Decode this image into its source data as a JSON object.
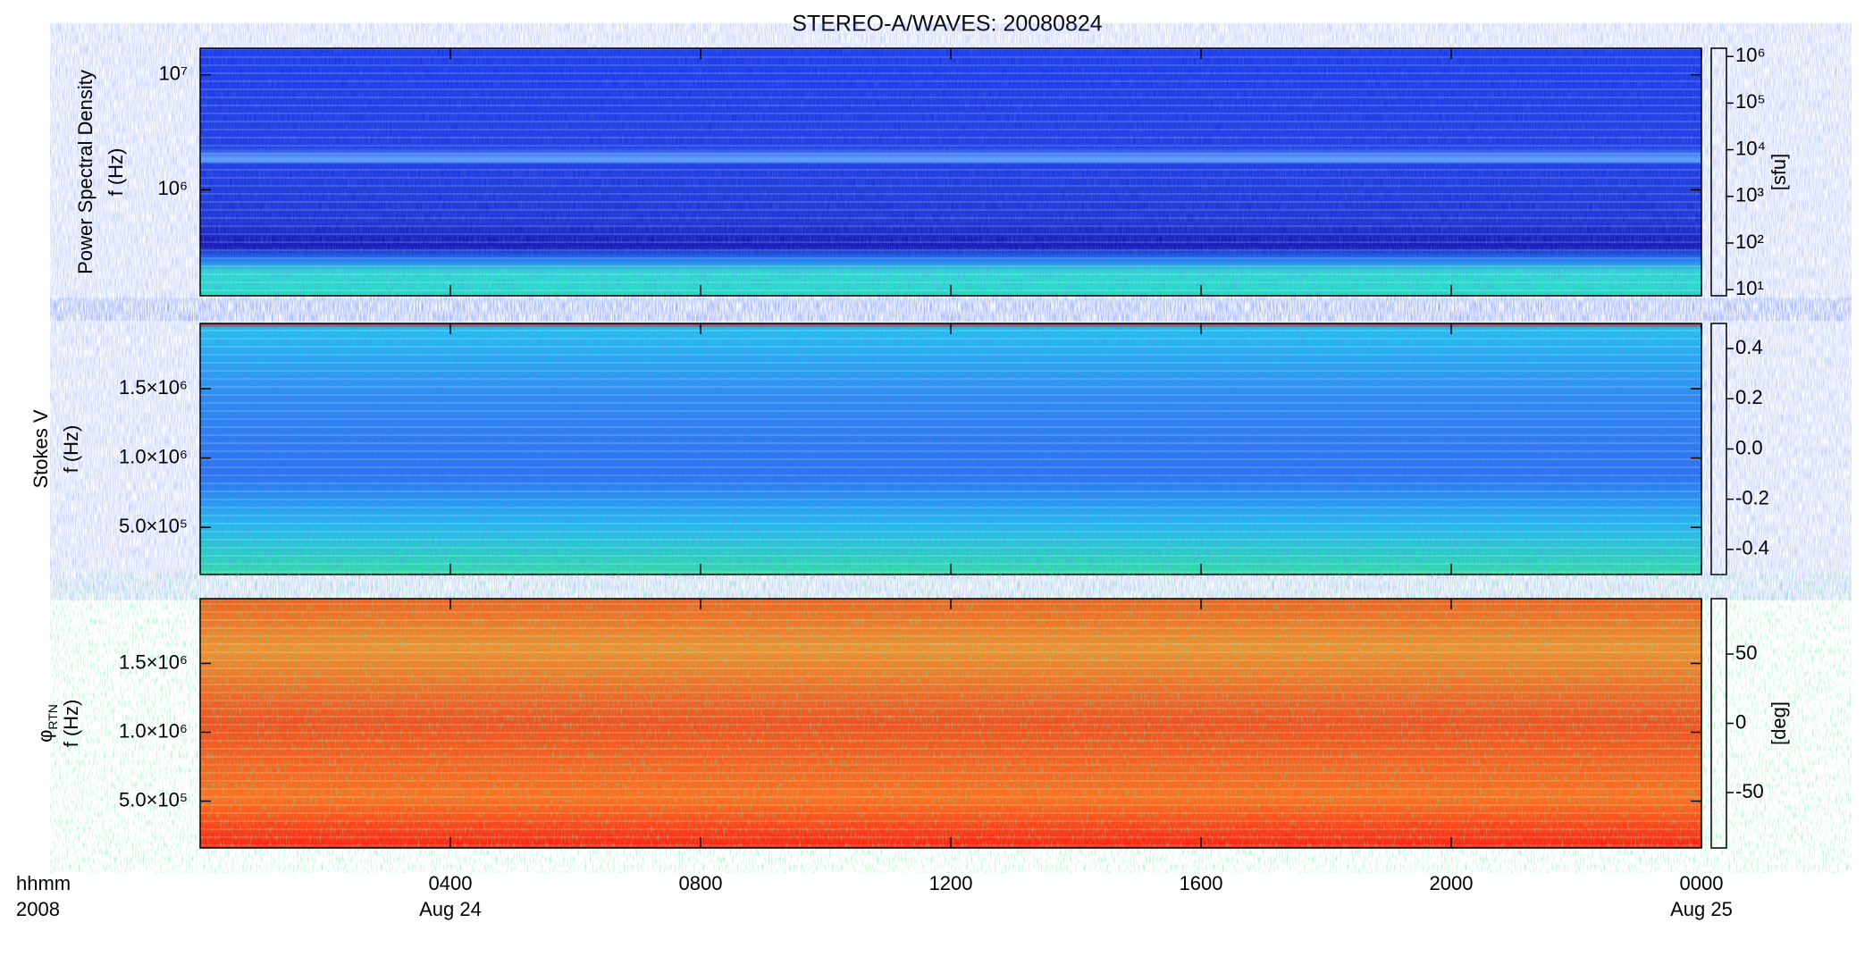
{
  "chart_data": [
    {
      "type": "spectrogram",
      "title": "STEREO-A/WAVES: 20080824",
      "ylabel": [
        "Power Spectral Density",
        "f (Hz)"
      ],
      "ylog": true,
      "ylim": [
        120000,
        17000000
      ],
      "yticks": [
        {
          "value": 1000000,
          "label": "10⁶"
        },
        {
          "value": 10000000,
          "label": "10⁷"
        }
      ],
      "colorbar": {
        "log": true,
        "clim": [
          7.4,
          1500000
        ],
        "label": "[sfu]",
        "ticks": [
          {
            "value": 10,
            "label": "10¹"
          },
          {
            "value": 100,
            "label": "10²"
          },
          {
            "value": 1000,
            "label": "10³"
          },
          {
            "value": 10000,
            "label": "10⁴"
          },
          {
            "value": 100000,
            "label": "10⁵"
          },
          {
            "value": 1000000,
            "label": "10⁶"
          }
        ]
      }
    },
    {
      "type": "spectrogram",
      "ylabel": [
        "Stokes V",
        "f (Hz)"
      ],
      "ylog": false,
      "ylim": [
        160000,
        1970000
      ],
      "yticks": [
        {
          "value": 500000,
          "label": "5.0×10⁵"
        },
        {
          "value": 1000000,
          "label": "1.0×10⁶"
        },
        {
          "value": 1500000,
          "label": "1.5×10⁶"
        }
      ],
      "colorbar": {
        "log": false,
        "clim": [
          -0.5,
          0.5
        ],
        "ticks": [
          -0.4,
          -0.2,
          {
            "value": 0,
            "label": "0.0"
          },
          0.2,
          0.4
        ]
      }
    },
    {
      "type": "spectrogram",
      "ylabel": [
        "f (Hz)"
      ],
      "ylabel_symbol": "φ",
      "ylabel_subscript": "RTN",
      "ylog": false,
      "ylim": [
        160000,
        1970000
      ],
      "yticks": [
        {
          "value": 500000,
          "label": "5.0×10⁵"
        },
        {
          "value": 1000000,
          "label": "1.0×10⁶"
        },
        {
          "value": 1500000,
          "label": "1.5×10⁶"
        }
      ],
      "colorbar": {
        "log": false,
        "clim": [
          -90,
          90
        ],
        "label": "[deg]",
        "ticks": [
          -50,
          0,
          50
        ]
      },
      "xlim": [
        0,
        24
      ],
      "xticks": [
        {
          "value": 4,
          "label": "0400"
        },
        {
          "value": 8,
          "label": "0800"
        },
        {
          "value": 12,
          "label": "1200"
        },
        {
          "value": 16,
          "label": "1600"
        },
        {
          "value": 20,
          "label": "2000"
        },
        {
          "value": 24,
          "label": "0000"
        }
      ],
      "xtick_dates": [
        {
          "value": 4,
          "label": "Aug 24"
        },
        {
          "value": 24,
          "label": "Aug 25"
        }
      ],
      "x_unit_label": "hhmm",
      "x_year_label": "2008"
    }
  ]
}
